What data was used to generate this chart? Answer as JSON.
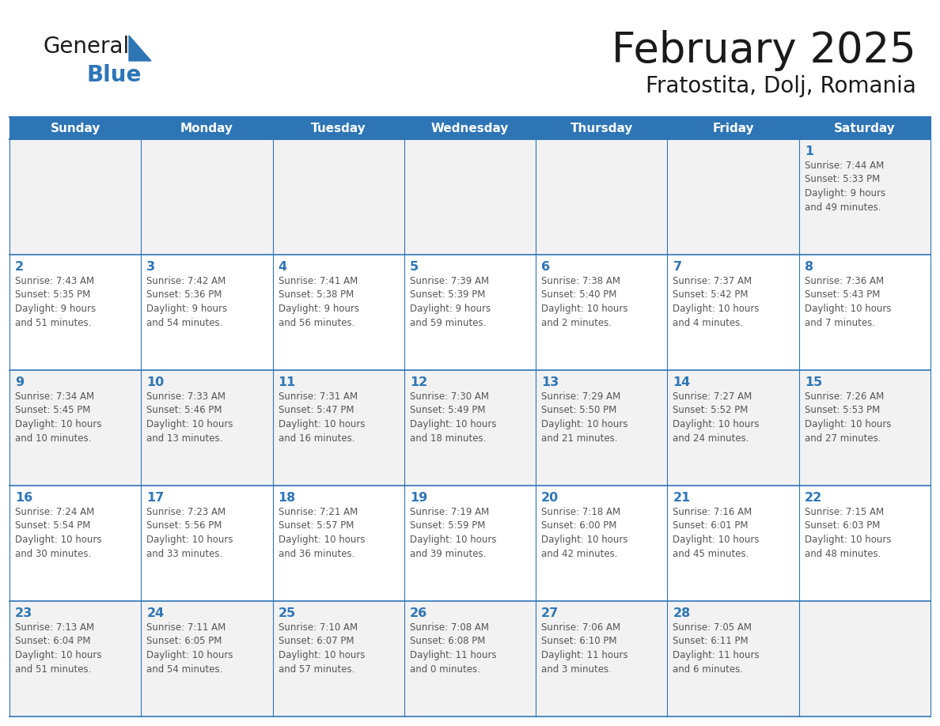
{
  "title": "February 2025",
  "subtitle": "Fratostita, Dolj, Romania",
  "header_bg_color": "#2E75B6",
  "header_text_color": "#FFFFFF",
  "cell_bg_color": "#FFFFFF",
  "cell_alt_bg_color": "#F2F2F2",
  "border_color": "#2E75B6",
  "day_number_color": "#2E75B6",
  "cell_text_color": "#555555",
  "days_of_week": [
    "Sunday",
    "Monday",
    "Tuesday",
    "Wednesday",
    "Thursday",
    "Friday",
    "Saturday"
  ],
  "weeks": [
    [
      {
        "day": "",
        "info": ""
      },
      {
        "day": "",
        "info": ""
      },
      {
        "day": "",
        "info": ""
      },
      {
        "day": "",
        "info": ""
      },
      {
        "day": "",
        "info": ""
      },
      {
        "day": "",
        "info": ""
      },
      {
        "day": "1",
        "info": "Sunrise: 7:44 AM\nSunset: 5:33 PM\nDaylight: 9 hours\nand 49 minutes."
      }
    ],
    [
      {
        "day": "2",
        "info": "Sunrise: 7:43 AM\nSunset: 5:35 PM\nDaylight: 9 hours\nand 51 minutes."
      },
      {
        "day": "3",
        "info": "Sunrise: 7:42 AM\nSunset: 5:36 PM\nDaylight: 9 hours\nand 54 minutes."
      },
      {
        "day": "4",
        "info": "Sunrise: 7:41 AM\nSunset: 5:38 PM\nDaylight: 9 hours\nand 56 minutes."
      },
      {
        "day": "5",
        "info": "Sunrise: 7:39 AM\nSunset: 5:39 PM\nDaylight: 9 hours\nand 59 minutes."
      },
      {
        "day": "6",
        "info": "Sunrise: 7:38 AM\nSunset: 5:40 PM\nDaylight: 10 hours\nand 2 minutes."
      },
      {
        "day": "7",
        "info": "Sunrise: 7:37 AM\nSunset: 5:42 PM\nDaylight: 10 hours\nand 4 minutes."
      },
      {
        "day": "8",
        "info": "Sunrise: 7:36 AM\nSunset: 5:43 PM\nDaylight: 10 hours\nand 7 minutes."
      }
    ],
    [
      {
        "day": "9",
        "info": "Sunrise: 7:34 AM\nSunset: 5:45 PM\nDaylight: 10 hours\nand 10 minutes."
      },
      {
        "day": "10",
        "info": "Sunrise: 7:33 AM\nSunset: 5:46 PM\nDaylight: 10 hours\nand 13 minutes."
      },
      {
        "day": "11",
        "info": "Sunrise: 7:31 AM\nSunset: 5:47 PM\nDaylight: 10 hours\nand 16 minutes."
      },
      {
        "day": "12",
        "info": "Sunrise: 7:30 AM\nSunset: 5:49 PM\nDaylight: 10 hours\nand 18 minutes."
      },
      {
        "day": "13",
        "info": "Sunrise: 7:29 AM\nSunset: 5:50 PM\nDaylight: 10 hours\nand 21 minutes."
      },
      {
        "day": "14",
        "info": "Sunrise: 7:27 AM\nSunset: 5:52 PM\nDaylight: 10 hours\nand 24 minutes."
      },
      {
        "day": "15",
        "info": "Sunrise: 7:26 AM\nSunset: 5:53 PM\nDaylight: 10 hours\nand 27 minutes."
      }
    ],
    [
      {
        "day": "16",
        "info": "Sunrise: 7:24 AM\nSunset: 5:54 PM\nDaylight: 10 hours\nand 30 minutes."
      },
      {
        "day": "17",
        "info": "Sunrise: 7:23 AM\nSunset: 5:56 PM\nDaylight: 10 hours\nand 33 minutes."
      },
      {
        "day": "18",
        "info": "Sunrise: 7:21 AM\nSunset: 5:57 PM\nDaylight: 10 hours\nand 36 minutes."
      },
      {
        "day": "19",
        "info": "Sunrise: 7:19 AM\nSunset: 5:59 PM\nDaylight: 10 hours\nand 39 minutes."
      },
      {
        "day": "20",
        "info": "Sunrise: 7:18 AM\nSunset: 6:00 PM\nDaylight: 10 hours\nand 42 minutes."
      },
      {
        "day": "21",
        "info": "Sunrise: 7:16 AM\nSunset: 6:01 PM\nDaylight: 10 hours\nand 45 minutes."
      },
      {
        "day": "22",
        "info": "Sunrise: 7:15 AM\nSunset: 6:03 PM\nDaylight: 10 hours\nand 48 minutes."
      }
    ],
    [
      {
        "day": "23",
        "info": "Sunrise: 7:13 AM\nSunset: 6:04 PM\nDaylight: 10 hours\nand 51 minutes."
      },
      {
        "day": "24",
        "info": "Sunrise: 7:11 AM\nSunset: 6:05 PM\nDaylight: 10 hours\nand 54 minutes."
      },
      {
        "day": "25",
        "info": "Sunrise: 7:10 AM\nSunset: 6:07 PM\nDaylight: 10 hours\nand 57 minutes."
      },
      {
        "day": "26",
        "info": "Sunrise: 7:08 AM\nSunset: 6:08 PM\nDaylight: 11 hours\nand 0 minutes."
      },
      {
        "day": "27",
        "info": "Sunrise: 7:06 AM\nSunset: 6:10 PM\nDaylight: 11 hours\nand 3 minutes."
      },
      {
        "day": "28",
        "info": "Sunrise: 7:05 AM\nSunset: 6:11 PM\nDaylight: 11 hours\nand 6 minutes."
      },
      {
        "day": "",
        "info": ""
      }
    ]
  ],
  "logo_general_color": "#1a1a1a",
  "logo_blue_color": "#2E75B6",
  "logo_triangle_color": "#2E75B6"
}
